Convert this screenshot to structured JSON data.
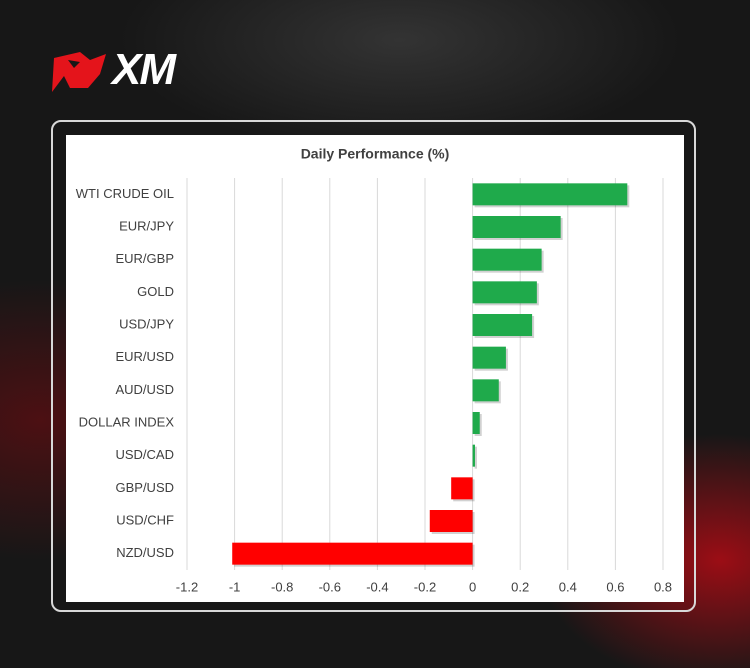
{
  "logo": "XM",
  "chart_data": {
    "type": "barh",
    "title": "Daily Performance (%)",
    "categories": [
      "WTI CRUDE OIL",
      "EUR/JPY",
      "EUR/GBP",
      "GOLD",
      "USD/JPY",
      "EUR/USD",
      "AUD/USD",
      "DOLLAR INDEX",
      "USD/CAD",
      "GBP/USD",
      "USD/CHF",
      "NZD/USD"
    ],
    "values": [
      0.65,
      0.37,
      0.29,
      0.27,
      0.25,
      0.14,
      0.11,
      0.03,
      0.01,
      -0.09,
      -0.18,
      -1.01
    ],
    "positive_color": "#1faa4b",
    "negative_color": "#ff0000",
    "xlim": [
      -1.2,
      0.8
    ],
    "xticks": [
      -1.2,
      -1,
      -0.8,
      -0.6,
      -0.4,
      -0.2,
      0,
      0.2,
      0.4,
      0.6,
      0.8
    ],
    "grid": true
  }
}
